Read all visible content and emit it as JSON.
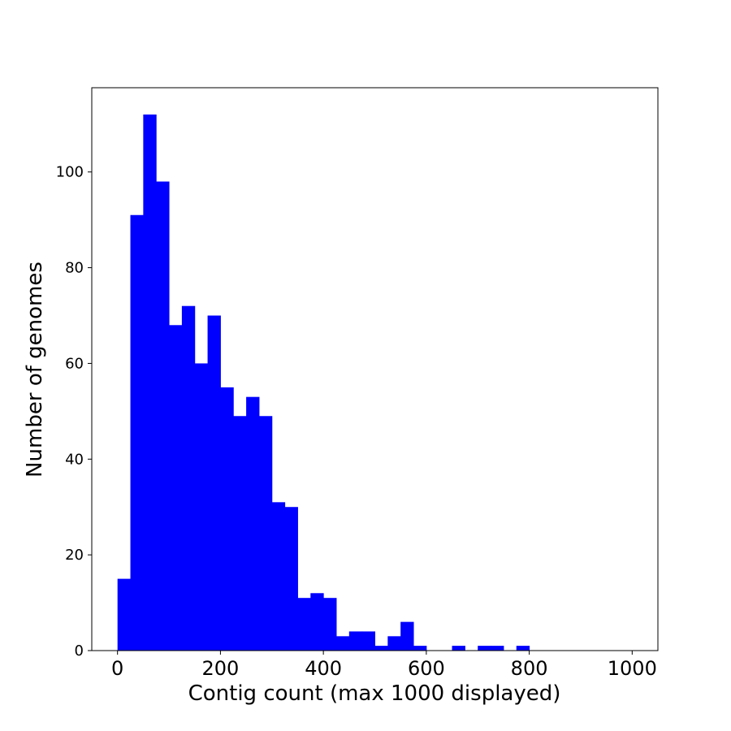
{
  "chart_data": {
    "type": "bar",
    "title": "",
    "xlabel": "Contig count (max 1000 displayed)",
    "ylabel": "Number of genomes",
    "color": "#0000ff",
    "bin_width": 25,
    "bins": [
      {
        "x0": 0,
        "x1": 25,
        "value": 15
      },
      {
        "x0": 25,
        "x1": 50,
        "value": 91
      },
      {
        "x0": 50,
        "x1": 75,
        "value": 112
      },
      {
        "x0": 75,
        "x1": 100,
        "value": 98
      },
      {
        "x0": 100,
        "x1": 125,
        "value": 68
      },
      {
        "x0": 125,
        "x1": 150,
        "value": 72
      },
      {
        "x0": 150,
        "x1": 175,
        "value": 60
      },
      {
        "x0": 175,
        "x1": 200,
        "value": 70
      },
      {
        "x0": 200,
        "x1": 225,
        "value": 55
      },
      {
        "x0": 225,
        "x1": 250,
        "value": 49
      },
      {
        "x0": 250,
        "x1": 275,
        "value": 53
      },
      {
        "x0": 275,
        "x1": 300,
        "value": 49
      },
      {
        "x0": 300,
        "x1": 325,
        "value": 31
      },
      {
        "x0": 325,
        "x1": 350,
        "value": 30
      },
      {
        "x0": 350,
        "x1": 375,
        "value": 11
      },
      {
        "x0": 375,
        "x1": 400,
        "value": 12
      },
      {
        "x0": 400,
        "x1": 425,
        "value": 11
      },
      {
        "x0": 425,
        "x1": 450,
        "value": 3
      },
      {
        "x0": 450,
        "x1": 475,
        "value": 4
      },
      {
        "x0": 475,
        "x1": 500,
        "value": 4
      },
      {
        "x0": 500,
        "x1": 525,
        "value": 1
      },
      {
        "x0": 525,
        "x1": 550,
        "value": 3
      },
      {
        "x0": 550,
        "x1": 575,
        "value": 6
      },
      {
        "x0": 575,
        "x1": 600,
        "value": 1
      },
      {
        "x0": 600,
        "x1": 625,
        "value": 0
      },
      {
        "x0": 625,
        "x1": 650,
        "value": 0
      },
      {
        "x0": 650,
        "x1": 675,
        "value": 1
      },
      {
        "x0": 675,
        "x1": 700,
        "value": 0
      },
      {
        "x0": 700,
        "x1": 725,
        "value": 1
      },
      {
        "x0": 725,
        "x1": 750,
        "value": 1
      },
      {
        "x0": 750,
        "x1": 775,
        "value": 0
      },
      {
        "x0": 775,
        "x1": 800,
        "value": 1
      }
    ],
    "xlim": [
      -50,
      1050
    ],
    "ylim": [
      0,
      117.6
    ],
    "xticks": [
      0,
      200,
      400,
      600,
      800,
      1000
    ],
    "yticks": [
      0,
      20,
      40,
      60,
      80,
      100
    ],
    "grid": false,
    "legend": "none"
  }
}
